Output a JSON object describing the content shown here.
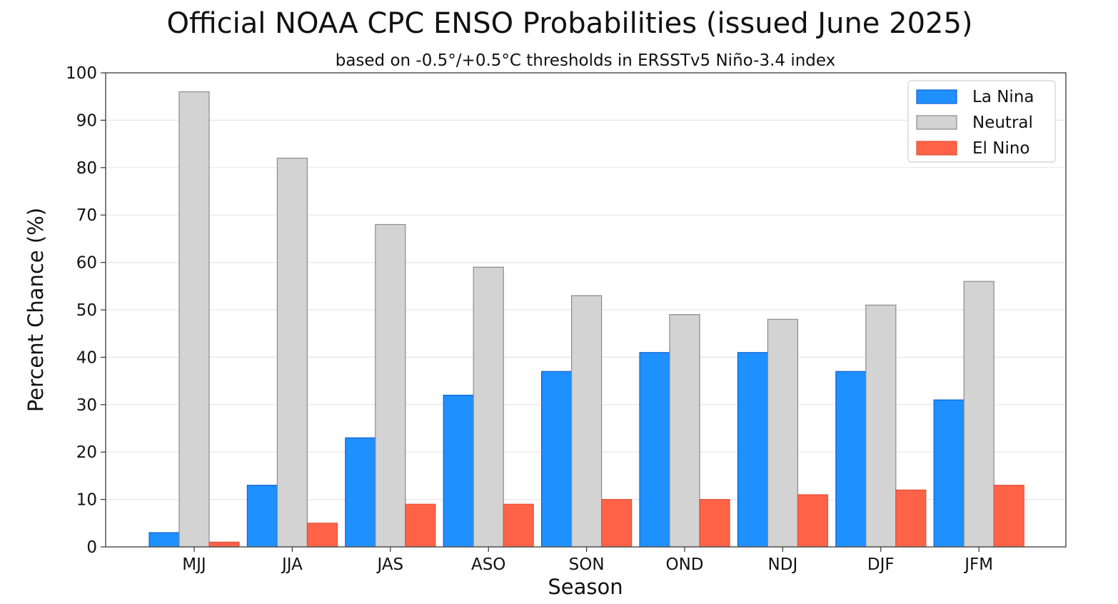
{
  "chart_data": {
    "type": "bar",
    "title": "Official NOAA CPC ENSO Probabilities (issued June 2025)",
    "subtitle": "based on -0.5°/+0.5°C thresholds in ERSSTv5 Niño-3.4 index",
    "xlabel": "Season",
    "ylabel": "Percent Chance (%)",
    "ylim": [
      0,
      100
    ],
    "yticks": [
      0,
      10,
      20,
      30,
      40,
      50,
      60,
      70,
      80,
      90,
      100
    ],
    "grid": "horizontal",
    "legend_position": "top-right",
    "categories": [
      "MJJ",
      "JJA",
      "JAS",
      "ASO",
      "SON",
      "OND",
      "NDJ",
      "DJF",
      "JFM"
    ],
    "series": [
      {
        "name": "La Nina",
        "color": "#1e90ff",
        "edge": "#1060d0",
        "values": [
          3,
          13,
          23,
          32,
          37,
          41,
          41,
          37,
          31
        ]
      },
      {
        "name": "Neutral",
        "color": "#d3d3d3",
        "edge": "#8a8a8a",
        "values": [
          96,
          82,
          68,
          59,
          53,
          49,
          48,
          51,
          56
        ]
      },
      {
        "name": "El Nino",
        "color": "#ff6347",
        "edge": "#e0503a",
        "values": [
          1,
          5,
          9,
          9,
          10,
          10,
          11,
          12,
          13
        ]
      }
    ]
  }
}
